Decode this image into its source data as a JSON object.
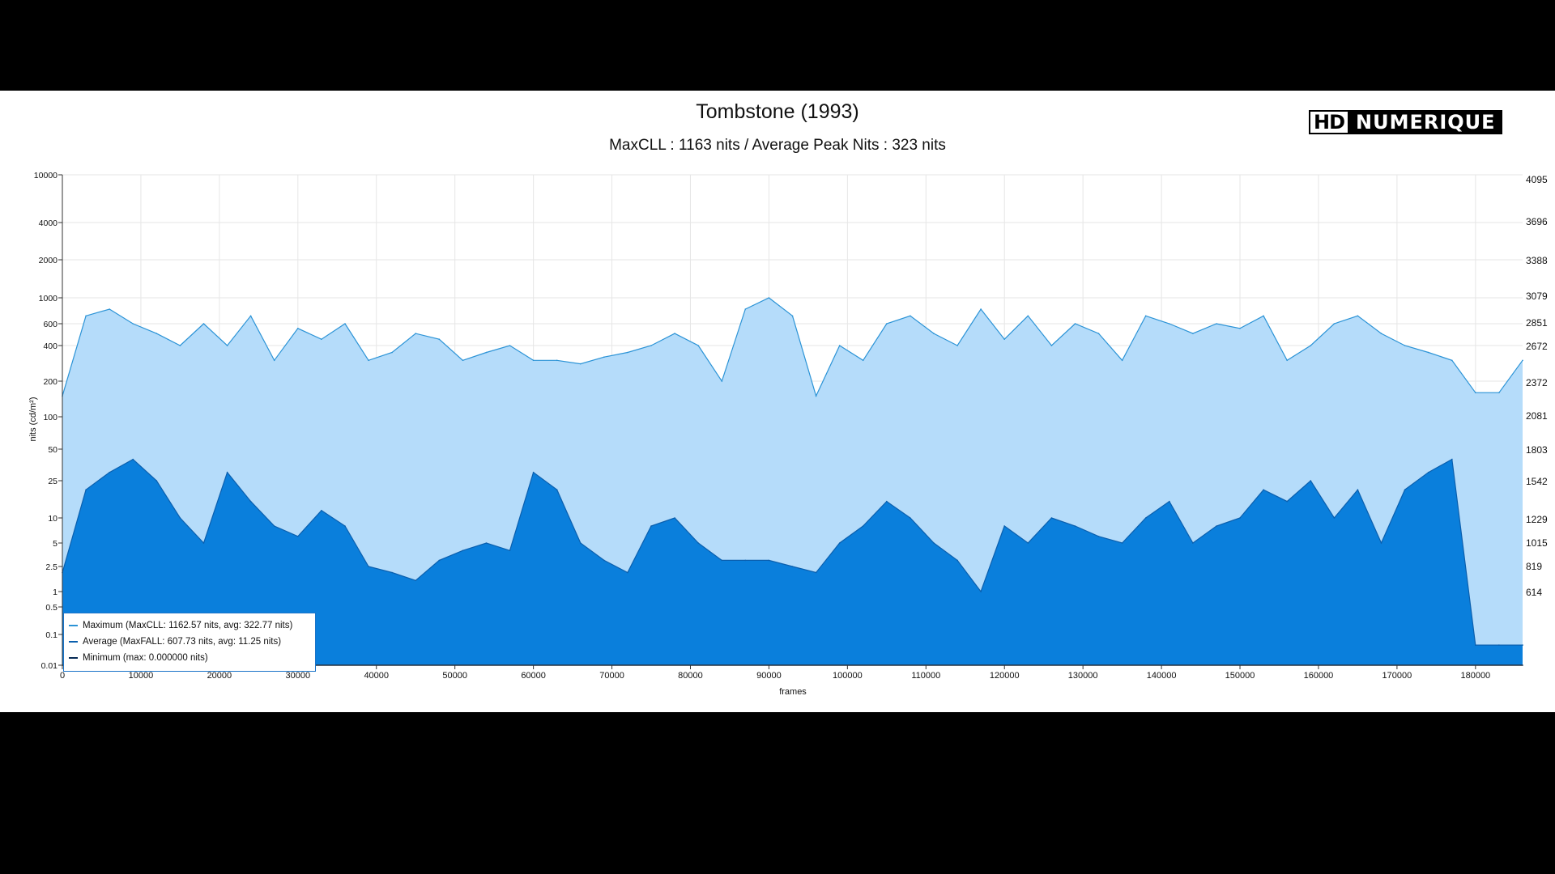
{
  "chart_data": {
    "type": "area",
    "title": "Tombstone (1993)",
    "subtitle": "MaxCLL : 1163 nits / Average Peak Nits : 323 nits",
    "xlabel": "frames",
    "ylabel": "nits (cd/m²)",
    "xlim": [
      0,
      186000
    ],
    "x_ticks": [
      "0",
      "10000",
      "20000",
      "30000",
      "40000",
      "50000",
      "60000",
      "70000",
      "80000",
      "90000",
      "100000",
      "110000",
      "120000",
      "130000",
      "140000",
      "150000",
      "160000",
      "170000",
      "180000"
    ],
    "y_ticks": [
      "10000",
      "4000",
      "2000",
      "1000",
      "600",
      "400",
      "200",
      "100",
      "50",
      "25",
      "10",
      "5",
      "2.5",
      "1",
      "0.5",
      "0.1",
      "0.01"
    ],
    "y2_ticks": [
      "4095",
      "3696",
      "3388",
      "3079",
      "2851",
      "2672",
      "2372",
      "2081",
      "1803",
      "1542",
      "1229",
      "1015",
      "819",
      "614"
    ],
    "grid": true,
    "legend_position": "bottom-left",
    "colors": {
      "max_fill": "#b5dcfa",
      "max_line": "#2b93d6",
      "avg_fill": "#0a7fdc",
      "avg_line": "#0a5fae",
      "min_line": "#062a55"
    },
    "series": [
      {
        "name": "Maximum (MaxCLL: 1162.57 nits, avg: 322.77 nits)",
        "x": [
          0,
          3000,
          6000,
          9000,
          12000,
          15000,
          18000,
          21000,
          24000,
          27000,
          30000,
          33000,
          36000,
          39000,
          42000,
          45000,
          48000,
          51000,
          54000,
          57000,
          60000,
          63000,
          66000,
          69000,
          72000,
          75000,
          78000,
          81000,
          84000,
          87000,
          90000,
          93000,
          96000,
          99000,
          102000,
          105000,
          108000,
          111000,
          114000,
          117000,
          120000,
          123000,
          126000,
          129000,
          132000,
          135000,
          138000,
          141000,
          144000,
          147000,
          150000,
          153000,
          156000,
          159000,
          162000,
          165000,
          168000,
          171000,
          174000,
          177000,
          180000,
          183000,
          186000
        ],
        "values": [
          150,
          700,
          800,
          600,
          500,
          400,
          600,
          400,
          700,
          300,
          550,
          450,
          600,
          300,
          350,
          500,
          450,
          300,
          350,
          400,
          300,
          300,
          280,
          320,
          350,
          400,
          500,
          400,
          200,
          800,
          1000,
          700,
          150,
          400,
          300,
          600,
          700,
          500,
          400,
          800,
          450,
          700,
          400,
          600,
          500,
          300,
          700,
          600,
          500,
          600,
          550,
          700,
          300,
          400,
          600,
          700,
          500,
          400,
          350,
          300,
          160,
          160,
          300
        ]
      },
      {
        "name": "Average (MaxFALL: 607.73 nits, avg: 11.25 nits)",
        "x": [
          0,
          3000,
          6000,
          9000,
          12000,
          15000,
          18000,
          21000,
          24000,
          27000,
          30000,
          33000,
          36000,
          39000,
          42000,
          45000,
          48000,
          51000,
          54000,
          57000,
          60000,
          63000,
          66000,
          69000,
          72000,
          75000,
          78000,
          81000,
          84000,
          87000,
          90000,
          93000,
          96000,
          99000,
          102000,
          105000,
          108000,
          111000,
          114000,
          117000,
          120000,
          123000,
          126000,
          129000,
          132000,
          135000,
          138000,
          141000,
          144000,
          147000,
          150000,
          153000,
          156000,
          159000,
          162000,
          165000,
          168000,
          171000,
          174000,
          177000,
          180000,
          183000,
          186000
        ],
        "values": [
          2,
          20,
          30,
          40,
          25,
          10,
          5,
          30,
          15,
          8,
          6,
          12,
          8,
          2.5,
          2,
          1.5,
          3,
          4,
          5,
          4,
          30,
          20,
          5,
          3,
          2,
          8,
          10,
          5,
          3,
          3,
          3,
          2.5,
          2,
          5,
          8,
          15,
          10,
          5,
          3,
          1,
          8,
          5,
          10,
          8,
          6,
          5,
          10,
          15,
          5,
          8,
          10,
          20,
          15,
          25,
          10,
          20,
          5,
          20,
          30,
          40,
          0.03,
          0.03,
          0.03
        ]
      },
      {
        "name": "Minimum (max: 0.000000 nits)",
        "x": [
          0,
          186000
        ],
        "values": [
          0,
          0
        ]
      }
    ]
  }
}
